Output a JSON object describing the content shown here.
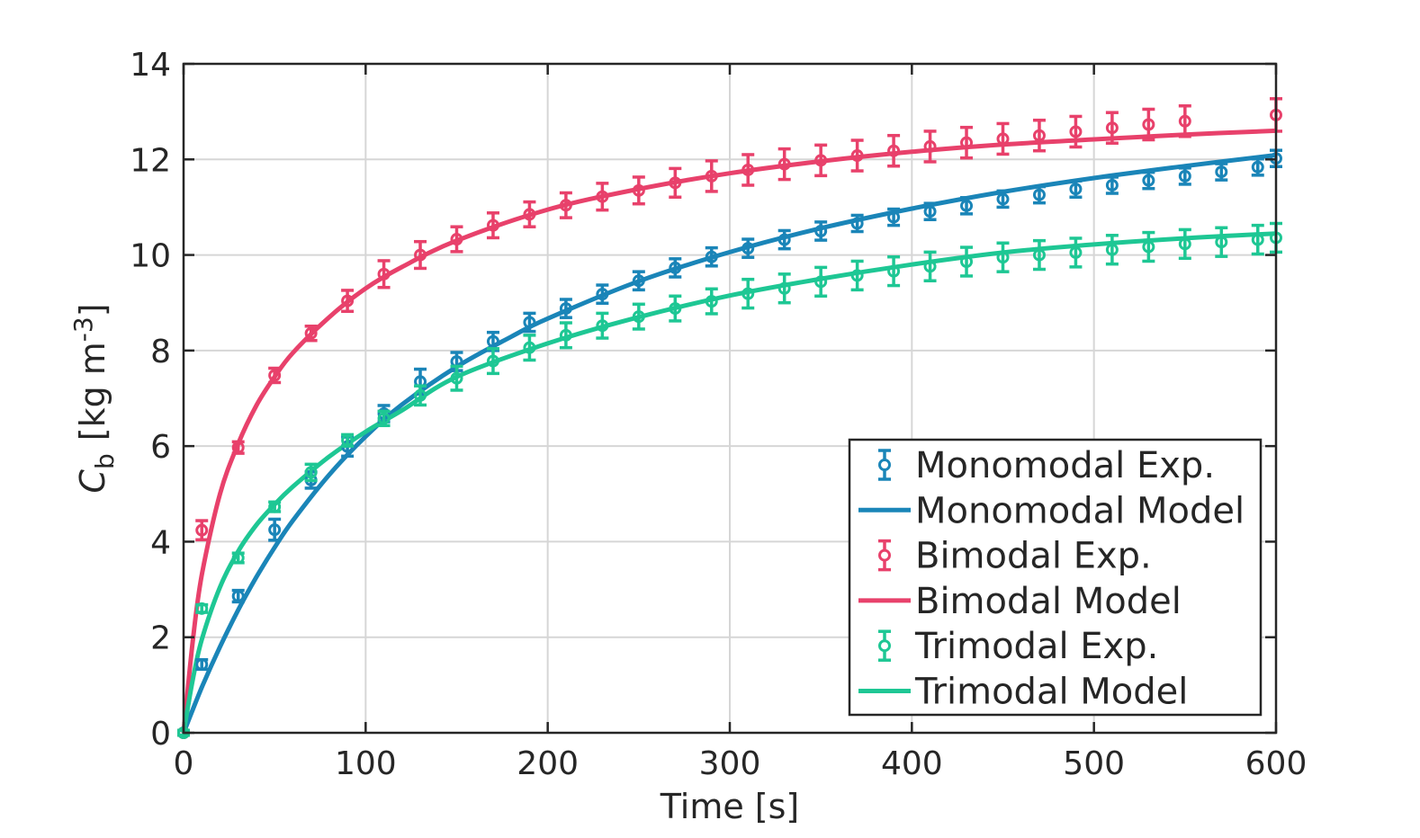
{
  "chart_data": {
    "type": "line",
    "title": "",
    "xlabel": "Time [s]",
    "ylabel": {
      "symbol": "C",
      "subscript": "b",
      "unit_prefix": "[kg m",
      "unit_exponent": "-3",
      "unit_suffix": "]"
    },
    "xlim": [
      0,
      600
    ],
    "ylim": [
      0,
      14
    ],
    "x_ticks": [
      "0",
      "100",
      "200",
      "300",
      "400",
      "500",
      "600"
    ],
    "y_ticks": [
      "0",
      "2",
      "4",
      "6",
      "8",
      "10",
      "12",
      "14"
    ],
    "grid": true,
    "legend_position": "bottom-right",
    "series": [
      {
        "name": "Monomodal Exp.",
        "kind": "errorbar",
        "color": "#1a85b8",
        "x": [
          0,
          10,
          30,
          50,
          70,
          90,
          110,
          130,
          150,
          170,
          190,
          210,
          230,
          250,
          270,
          290,
          310,
          330,
          350,
          370,
          390,
          410,
          430,
          450,
          470,
          490,
          510,
          530,
          550,
          570,
          590,
          600
        ],
        "y": [
          0,
          1.43,
          2.86,
          4.25,
          5.29,
          5.99,
          6.68,
          7.35,
          7.77,
          8.19,
          8.59,
          8.88,
          9.18,
          9.46,
          9.73,
          9.96,
          10.14,
          10.32,
          10.5,
          10.66,
          10.79,
          10.91,
          11.03,
          11.17,
          11.26,
          11.38,
          11.46,
          11.56,
          11.65,
          11.74,
          11.84,
          12.02
        ],
        "err": [
          0.05,
          0.1,
          0.12,
          0.22,
          0.17,
          0.2,
          0.17,
          0.26,
          0.19,
          0.19,
          0.19,
          0.19,
          0.19,
          0.19,
          0.19,
          0.19,
          0.19,
          0.19,
          0.19,
          0.17,
          0.17,
          0.17,
          0.17,
          0.17,
          0.17,
          0.17,
          0.17,
          0.17,
          0.17,
          0.17,
          0.17,
          0.17
        ]
      },
      {
        "name": "Monomodal Model",
        "kind": "line",
        "color": "#1a85b8",
        "x": [
          0,
          10,
          20,
          30,
          40,
          50,
          60,
          80,
          100,
          120,
          150,
          180,
          200,
          250,
          300,
          350,
          400,
          450,
          500,
          550,
          600
        ],
        "y": [
          0,
          0.95,
          1.8,
          2.57,
          3.26,
          3.88,
          4.44,
          5.4,
          6.2,
          6.87,
          7.66,
          8.29,
          8.67,
          9.45,
          10.06,
          10.56,
          10.97,
          11.32,
          11.61,
          11.86,
          12.09
        ]
      },
      {
        "name": "Bimodal Exp.",
        "kind": "errorbar",
        "color": "#e8416b",
        "x": [
          0,
          10,
          30,
          50,
          70,
          90,
          110,
          130,
          150,
          170,
          190,
          210,
          230,
          250,
          270,
          290,
          310,
          330,
          350,
          370,
          390,
          410,
          430,
          450,
          470,
          490,
          510,
          530,
          550,
          600
        ],
        "y": [
          0,
          4.24,
          5.97,
          7.48,
          8.36,
          9.04,
          9.6,
          10.0,
          10.33,
          10.62,
          10.85,
          11.04,
          11.22,
          11.35,
          11.51,
          11.65,
          11.78,
          11.9,
          11.98,
          12.08,
          12.18,
          12.27,
          12.35,
          12.43,
          12.5,
          12.58,
          12.66,
          12.73,
          12.8,
          12.93
        ],
        "err": [
          0.05,
          0.2,
          0.12,
          0.15,
          0.15,
          0.22,
          0.28,
          0.28,
          0.26,
          0.26,
          0.26,
          0.26,
          0.28,
          0.28,
          0.3,
          0.32,
          0.32,
          0.32,
          0.32,
          0.32,
          0.32,
          0.32,
          0.32,
          0.32,
          0.32,
          0.32,
          0.32,
          0.32,
          0.32,
          0.34
        ]
      },
      {
        "name": "Bimodal Model",
        "kind": "line",
        "color": "#e8416b",
        "x": [
          0,
          5,
          10,
          20,
          30,
          40,
          50,
          60,
          80,
          100,
          120,
          150,
          200,
          250,
          300,
          350,
          400,
          450,
          500,
          550,
          600
        ],
        "y": [
          0,
          1.9,
          3.3,
          5.0,
          6.05,
          6.85,
          7.45,
          7.95,
          8.7,
          9.3,
          9.75,
          10.3,
          10.95,
          11.38,
          11.71,
          11.96,
          12.16,
          12.31,
          12.42,
          12.52,
          12.6
        ]
      },
      {
        "name": "Trimodal Exp.",
        "kind": "errorbar",
        "color": "#1ec794",
        "x": [
          0,
          10,
          30,
          50,
          70,
          90,
          110,
          130,
          150,
          170,
          190,
          210,
          230,
          250,
          270,
          290,
          310,
          330,
          350,
          370,
          390,
          410,
          430,
          450,
          470,
          490,
          510,
          530,
          550,
          570,
          590,
          600
        ],
        "y": [
          0,
          2.6,
          3.66,
          4.73,
          5.45,
          6.12,
          6.58,
          7.06,
          7.42,
          7.78,
          8.06,
          8.32,
          8.52,
          8.71,
          8.88,
          9.03,
          9.19,
          9.3,
          9.44,
          9.57,
          9.66,
          9.76,
          9.86,
          9.95,
          10.0,
          10.05,
          10.11,
          10.17,
          10.23,
          10.27,
          10.32,
          10.36
        ],
        "err": [
          0.05,
          0.08,
          0.1,
          0.1,
          0.17,
          0.12,
          0.15,
          0.2,
          0.25,
          0.26,
          0.26,
          0.26,
          0.26,
          0.26,
          0.26,
          0.26,
          0.3,
          0.3,
          0.3,
          0.3,
          0.3,
          0.3,
          0.3,
          0.3,
          0.3,
          0.3,
          0.3,
          0.3,
          0.3,
          0.3,
          0.3,
          0.3
        ]
      },
      {
        "name": "Trimodal Model",
        "kind": "line",
        "color": "#1ec794",
        "x": [
          0,
          5,
          10,
          20,
          30,
          40,
          50,
          60,
          80,
          100,
          120,
          150,
          200,
          250,
          300,
          350,
          400,
          450,
          500,
          550,
          600
        ],
        "y": [
          0,
          1.1,
          1.95,
          3.05,
          3.8,
          4.35,
          4.78,
          5.15,
          5.78,
          6.3,
          6.75,
          7.45,
          8.15,
          8.7,
          9.15,
          9.5,
          9.8,
          10.05,
          10.22,
          10.35,
          10.45
        ]
      }
    ]
  }
}
